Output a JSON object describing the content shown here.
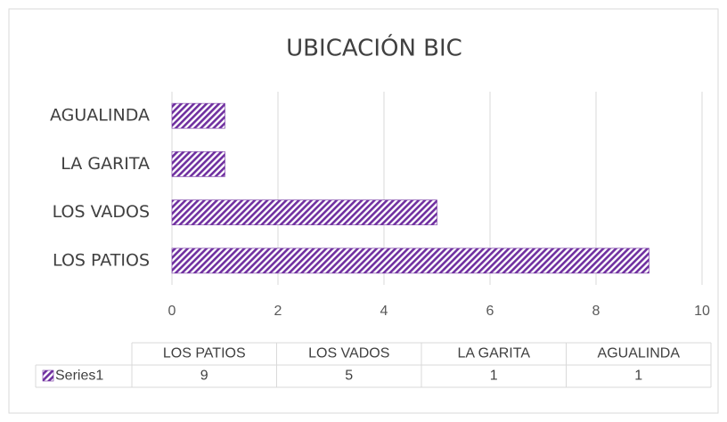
{
  "chart_data": {
    "type": "bar",
    "orientation": "horizontal",
    "title": "UBICACIÓN BIC",
    "categories": [
      "LOS PATIOS",
      "LOS VADOS",
      "LA GARITA",
      "AGUALINDA"
    ],
    "series": [
      {
        "name": "Series1",
        "color": "#7030a0",
        "values": [
          9,
          5,
          1,
          1
        ]
      }
    ],
    "xlim": [
      0,
      10
    ],
    "xticks": [
      0,
      2,
      4,
      6,
      8,
      10
    ],
    "grid": true,
    "data_table": true
  }
}
